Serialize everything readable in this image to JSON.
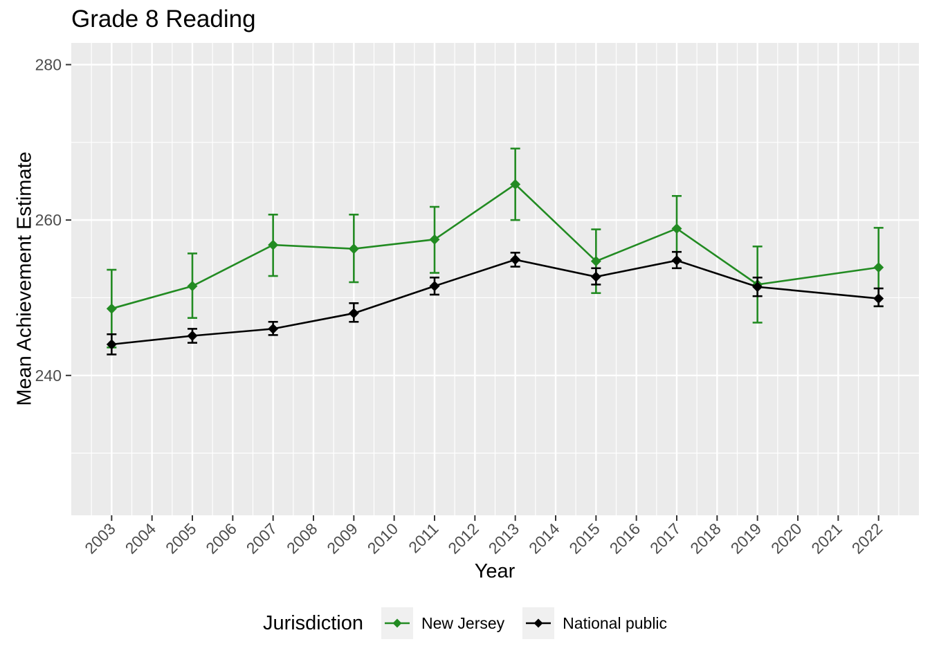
{
  "colors": {
    "panel_background": "#EBEBEB",
    "grid_major": "#FFFFFF",
    "grid_minor": "#FFFFFF",
    "tick_label": "#4D4D4D",
    "tick_mark": "#333333",
    "new_jersey": "#228B22",
    "national_public": "#000000",
    "legend_key_background": "#F0F0F0"
  },
  "chart_data": {
    "type": "line",
    "title": "Grade 8 Reading",
    "xlabel": "Year",
    "ylabel": "Mean Achievement Estimate",
    "legend_title": "Jurisdiction",
    "legend_position": "bottom",
    "grid": true,
    "point_shape": "diamond",
    "error_bars": true,
    "x_ticks": [
      2003,
      2004,
      2005,
      2006,
      2007,
      2008,
      2009,
      2010,
      2011,
      2012,
      2013,
      2014,
      2015,
      2016,
      2017,
      2018,
      2019,
      2020,
      2021,
      2022
    ],
    "y_ticks": [
      240,
      260,
      280
    ],
    "y_minor_ticks": [
      230,
      250,
      270
    ],
    "xlim": [
      2002,
      2023
    ],
    "ylim": [
      222,
      282.8
    ],
    "series": [
      {
        "name": "New Jersey",
        "color": "#228B22",
        "x": [
          2003,
          2005,
          2007,
          2009,
          2011,
          2013,
          2015,
          2017,
          2019,
          2022
        ],
        "y": [
          248.6,
          251.5,
          256.8,
          256.3,
          257.5,
          264.6,
          254.7,
          258.9,
          251.7,
          253.9
        ],
        "ci_low": [
          243.6,
          247.4,
          252.8,
          252.0,
          253.2,
          260.0,
          250.6,
          254.7,
          246.8,
          248.9
        ],
        "ci_high": [
          253.6,
          255.7,
          260.7,
          260.7,
          261.7,
          269.2,
          258.8,
          263.1,
          256.6,
          259.0
        ]
      },
      {
        "name": "National public",
        "color": "#000000",
        "x": [
          2003,
          2005,
          2007,
          2009,
          2011,
          2013,
          2015,
          2017,
          2019,
          2022
        ],
        "y": [
          244.0,
          245.1,
          246.0,
          248.0,
          251.5,
          254.9,
          252.7,
          254.8,
          251.4,
          249.9
        ],
        "ci_low": [
          242.7,
          244.2,
          245.2,
          246.9,
          250.4,
          254.0,
          251.7,
          253.8,
          250.2,
          248.9
        ],
        "ci_high": [
          245.3,
          246.0,
          246.9,
          249.3,
          252.6,
          255.8,
          253.8,
          255.9,
          252.6,
          251.2
        ]
      }
    ]
  }
}
